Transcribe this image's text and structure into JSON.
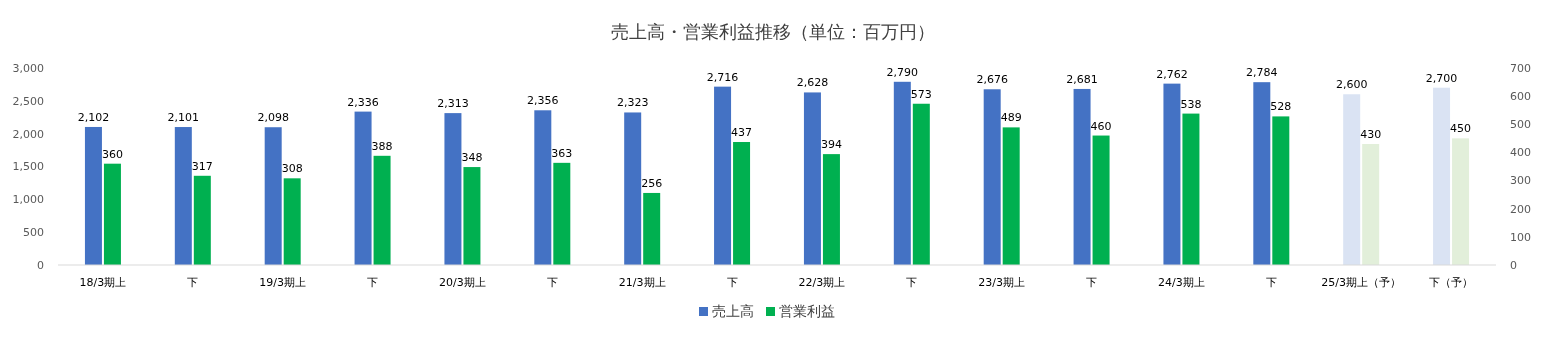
{
  "chart_data": {
    "type": "bar",
    "title": "売上高・営業利益推移（単位：百万円）",
    "categories": [
      "18/3期上",
      "下",
      "19/3期上",
      "下",
      "20/3期上",
      "下",
      "21/3期上",
      "下",
      "22/3期上",
      "下",
      "23/3期上",
      "下",
      "24/3期上",
      "下",
      "25/3期上（予）",
      "下（予）"
    ],
    "series": [
      {
        "name": "売上高",
        "color": "#4472c4",
        "colors": [
          "#4472c4",
          "#4472c4",
          "#4472c4",
          "#4472c4",
          "#4472c4",
          "#4472c4",
          "#4472c4",
          "#4472c4",
          "#4472c4",
          "#4472c4",
          "#4472c4",
          "#4472c4",
          "#4472c4",
          "#4472c4",
          "#dae3f3",
          "#dae3f3"
        ],
        "values": [
          2102,
          2101,
          2098,
          2336,
          2313,
          2356,
          2323,
          2716,
          2628,
          2790,
          2676,
          2681,
          2762,
          2784,
          2600,
          2700
        ],
        "value_labels": [
          "2,102",
          "2,101",
          "2,098",
          "2,336",
          "2,313",
          "2,356",
          "2,323",
          "2,716",
          "2,628",
          "2,790",
          "2,676",
          "2,681",
          "2,762",
          "2,784",
          "2,600",
          "2,700"
        ]
      },
      {
        "name": "営業利益",
        "color": "#00b050",
        "axis": "y2",
        "colors": [
          "#00b050",
          "#00b050",
          "#00b050",
          "#00b050",
          "#00b050",
          "#00b050",
          "#00b050",
          "#00b050",
          "#00b050",
          "#00b050",
          "#00b050",
          "#00b050",
          "#00b050",
          "#00b050",
          "#e2efda",
          "#e2efda"
        ],
        "values": [
          360,
          317,
          308,
          388,
          348,
          363,
          256,
          437,
          394,
          573,
          489,
          460,
          538,
          528,
          430,
          450
        ],
        "value_labels": [
          "360",
          "317",
          "308",
          "388",
          "348",
          "363",
          "256",
          "437",
          "394",
          "573",
          "489",
          "460",
          "538",
          "528",
          "430",
          "450"
        ]
      }
    ],
    "ylim": [
      0,
      3000
    ],
    "yticks": [
      0,
      {
        "value": 500,
        "label": "500"
      },
      {
        "value": 1000,
        "label": "1,000"
      },
      {
        "value": 1500,
        "label": "1,500"
      },
      {
        "value": 2000,
        "label": "2,000"
      },
      {
        "value": 2500,
        "label": "2,500"
      },
      {
        "value": 3000,
        "label": "3,000"
      }
    ],
    "y2lim": [
      0,
      700
    ],
    "y2ticks": [
      0,
      100,
      200,
      300,
      400,
      500,
      600,
      700
    ],
    "legend": "bottom",
    "grid": false
  }
}
